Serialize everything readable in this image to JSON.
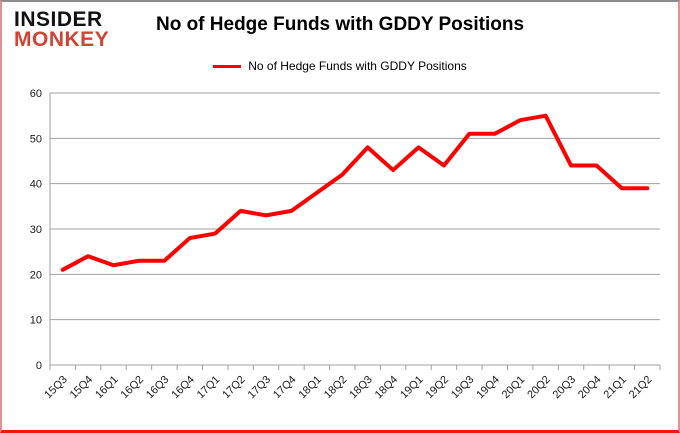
{
  "logo": {
    "line1": "INSIDER",
    "line2": "MONKEY"
  },
  "header": {
    "title": "No of Hedge Funds with GDDY Positions"
  },
  "legend": {
    "label": "No of Hedge Funds with GDDY Positions",
    "line_color": "#ff0000"
  },
  "colors": {
    "series": "#ff0000",
    "gridline": "#a0a0a0",
    "axis": "#a0a0a0",
    "text": "#1a1a1a",
    "logo_red": "#d14332"
  },
  "chart_data": {
    "type": "line",
    "title": "No of Hedge Funds with GDDY Positions",
    "categories": [
      "15Q3",
      "15Q4",
      "16Q1",
      "16Q2",
      "16Q3",
      "16Q4",
      "17Q1",
      "17Q2",
      "17Q3",
      "17Q4",
      "18Q1",
      "18Q2",
      "18Q3",
      "18Q4",
      "19Q1",
      "19Q2",
      "19Q3",
      "19Q4",
      "20Q1",
      "20Q2",
      "20Q3",
      "20Q4",
      "21Q1",
      "21Q2"
    ],
    "series": [
      {
        "name": "No of Hedge Funds with GDDY Positions",
        "color": "#ff0000",
        "values": [
          21,
          24,
          22,
          23,
          23,
          28,
          29,
          34,
          33,
          34,
          38,
          42,
          48,
          43,
          48,
          44,
          51,
          51,
          54,
          55,
          44,
          44,
          39,
          39
        ]
      }
    ],
    "xlabel": "",
    "ylabel": "",
    "ylim": [
      0,
      60
    ],
    "yticks": [
      0,
      10,
      20,
      30,
      40,
      50,
      60
    ],
    "grid": "horizontal",
    "legend_position": "top",
    "x_tick_label_rotation": -45
  }
}
